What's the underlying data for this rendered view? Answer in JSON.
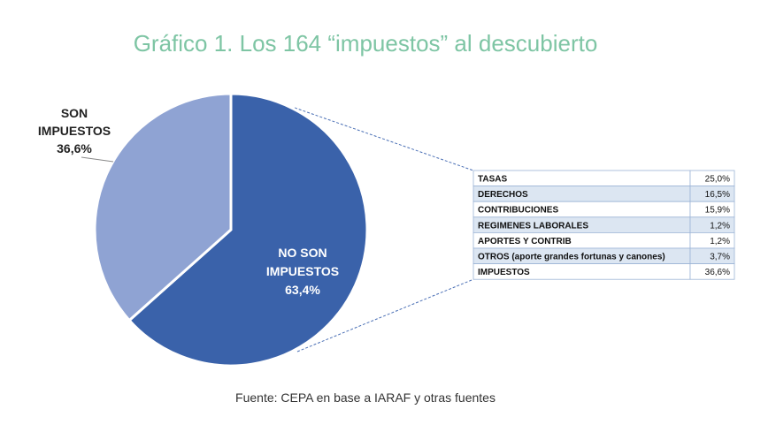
{
  "title": "Gráfico 1. Los 164 “impuestos” al descubierto",
  "source": "Fuente: CEPA en base a IARAF y otras fuentes",
  "colors": {
    "title": "#7ec5a4",
    "no_son": "#3a62aa",
    "son": "#8fa3d3",
    "row_alt": "#dce6f2",
    "row_border": "#9cb4d6",
    "connector": "#4a6fb5"
  },
  "chart_data": [
    {
      "type": "pie",
      "title": "Gráfico 1. Los 164 “impuestos” al descubierto",
      "slices": [
        {
          "label_lines": [
            "NO SON",
            "IMPUESTOS",
            "63,4%"
          ],
          "value": 63.4
        },
        {
          "label_lines": [
            "SON",
            "IMPUESTOS",
            "36,6%"
          ],
          "value": 36.6
        }
      ]
    },
    {
      "type": "table",
      "rows": [
        {
          "label": "TASAS",
          "value": "25,0%"
        },
        {
          "label": "DERECHOS",
          "value": "16,5%"
        },
        {
          "label": "CONTRIBUCIONES",
          "value": "15,9%"
        },
        {
          "label": "REGIMENES LABORALES",
          "value": "1,2%"
        },
        {
          "label": "APORTES Y CONTRIB",
          "value": "1,2%"
        },
        {
          "label": "OTROS (aporte grandes fortunas y canones)",
          "value": "3,7%"
        },
        {
          "label": "IMPUESTOS",
          "value": "36,6%"
        }
      ]
    }
  ]
}
